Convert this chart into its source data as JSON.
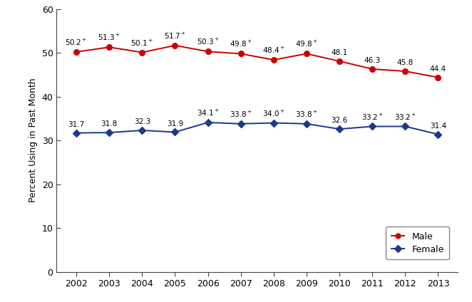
{
  "years": [
    2002,
    2003,
    2004,
    2005,
    2006,
    2007,
    2008,
    2009,
    2010,
    2011,
    2012,
    2013
  ],
  "male_values": [
    50.2,
    51.3,
    50.1,
    51.7,
    50.3,
    49.8,
    48.4,
    49.8,
    48.1,
    46.3,
    45.8,
    44.4
  ],
  "female_values": [
    31.7,
    31.8,
    32.3,
    31.9,
    34.1,
    33.8,
    34.0,
    33.8,
    32.6,
    33.2,
    33.2,
    31.4
  ],
  "male_dagger": [
    true,
    true,
    true,
    true,
    true,
    true,
    true,
    true,
    false,
    false,
    false,
    false
  ],
  "female_dagger": [
    false,
    false,
    false,
    false,
    true,
    true,
    true,
    true,
    false,
    true,
    true,
    false
  ],
  "male_color": "#cc0000",
  "female_color": "#1a3a8a",
  "male_label": "Male",
  "female_label": "Female",
  "ylabel": "Percent Using in Past Month",
  "ylim": [
    0,
    60
  ],
  "yticks": [
    0,
    10,
    20,
    30,
    40,
    50,
    60
  ],
  "figsize": [
    6.62,
    4.24
  ],
  "dpi": 100,
  "annotation_fontsize": 7.5,
  "legend_fontsize": 9,
  "tick_fontsize": 9,
  "ylabel_fontsize": 9
}
